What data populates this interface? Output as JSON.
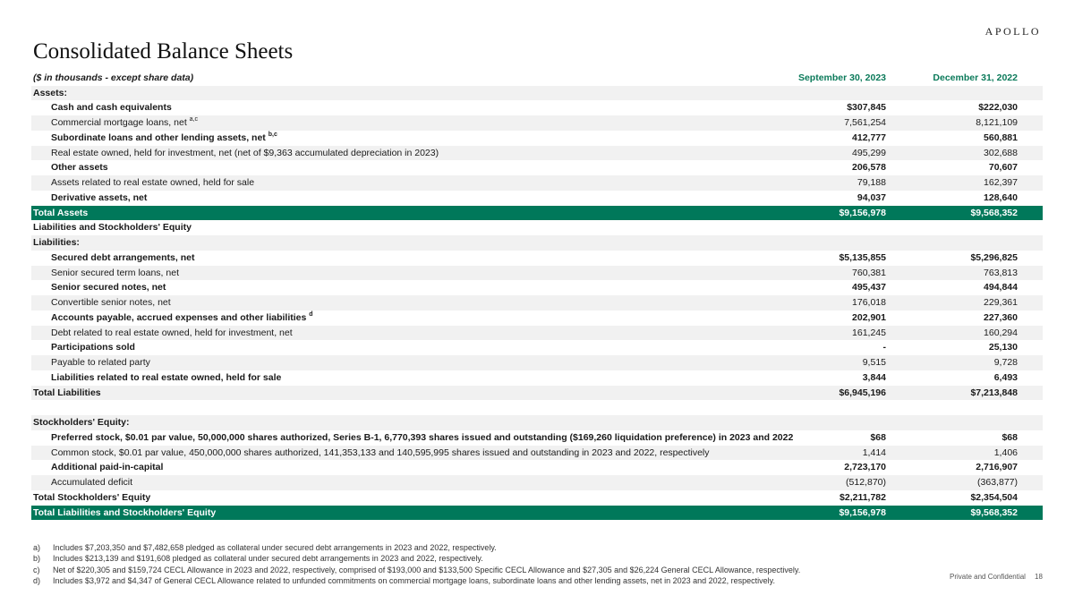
{
  "logo": "APOLLO",
  "title": "Consolidated Balance Sheets",
  "units": "($ in thousands - except share data)",
  "columns": [
    "September 30, 2023",
    "December 31, 2022"
  ],
  "colors": {
    "accent": "#00785a",
    "header_text": "#0b7a5a",
    "shade": "#f1f1f1"
  },
  "rows": [
    {
      "label": "Assets:",
      "sup": "",
      "v1": "",
      "v2": "",
      "kind": "shade",
      "bold": true,
      "indent": false
    },
    {
      "label": "Cash and cash equivalents",
      "sup": "",
      "v1": "$307,845",
      "v2": "$222,030",
      "kind": "plain",
      "bold": true,
      "indent": true
    },
    {
      "label": "Commercial mortgage loans, net",
      "sup": "a,c",
      "v1": "7,561,254",
      "v2": "8,121,109",
      "kind": "shade",
      "bold": false,
      "indent": true
    },
    {
      "label": "Subordinate loans and other lending assets, net",
      "sup": "b,c",
      "v1": "412,777",
      "v2": "560,881",
      "kind": "plain",
      "bold": true,
      "indent": true
    },
    {
      "label": "Real estate owned, held for investment, net (net of $9,363 accumulated depreciation in 2023)",
      "sup": "",
      "v1": "495,299",
      "v2": "302,688",
      "kind": "shade",
      "bold": false,
      "indent": true
    },
    {
      "label": "Other assets",
      "sup": "",
      "v1": "206,578",
      "v2": "70,607",
      "kind": "plain",
      "bold": true,
      "indent": true
    },
    {
      "label": "Assets related to real estate owned, held for sale",
      "sup": "",
      "v1": "79,188",
      "v2": "162,397",
      "kind": "shade",
      "bold": false,
      "indent": true
    },
    {
      "label": "Derivative assets, net",
      "sup": "",
      "v1": "94,037",
      "v2": "128,640",
      "kind": "plain",
      "bold": true,
      "indent": true
    },
    {
      "label": "Total Assets",
      "sup": "",
      "v1": "$9,156,978",
      "v2": "$9,568,352",
      "kind": "total",
      "bold": true,
      "indent": false
    },
    {
      "label": "Liabilities and Stockholders' Equity",
      "sup": "",
      "v1": "",
      "v2": "",
      "kind": "plain",
      "bold": true,
      "indent": false
    },
    {
      "label": "Liabilities:",
      "sup": "",
      "v1": "",
      "v2": "",
      "kind": "shade",
      "bold": true,
      "indent": false
    },
    {
      "label": "Secured debt arrangements, net",
      "sup": "",
      "v1": "$5,135,855",
      "v2": "$5,296,825",
      "kind": "plain",
      "bold": true,
      "indent": true
    },
    {
      "label": "Senior secured term loans, net",
      "sup": "",
      "v1": "760,381",
      "v2": "763,813",
      "kind": "shade",
      "bold": false,
      "indent": true
    },
    {
      "label": "Senior secured notes, net",
      "sup": "",
      "v1": "495,437",
      "v2": "494,844",
      "kind": "plain",
      "bold": true,
      "indent": true
    },
    {
      "label": "Convertible senior notes, net",
      "sup": "",
      "v1": "176,018",
      "v2": "229,361",
      "kind": "shade",
      "bold": false,
      "indent": true
    },
    {
      "label": "Accounts payable, accrued expenses and other liabilities",
      "sup": "d",
      "v1": "202,901",
      "v2": "227,360",
      "kind": "plain",
      "bold": true,
      "indent": true
    },
    {
      "label": "Debt related to real estate owned, held for investment, net",
      "sup": "",
      "v1": "161,245",
      "v2": "160,294",
      "kind": "shade",
      "bold": false,
      "indent": true
    },
    {
      "label": "Participations sold",
      "sup": "",
      "v1": "-",
      "v2": "25,130",
      "kind": "plain",
      "bold": true,
      "indent": true
    },
    {
      "label": "Payable to related party",
      "sup": "",
      "v1": "9,515",
      "v2": "9,728",
      "kind": "shade",
      "bold": false,
      "indent": true
    },
    {
      "label": "Liabilities related to real estate owned, held for sale",
      "sup": "",
      "v1": "3,844",
      "v2": "6,493",
      "kind": "plain",
      "bold": true,
      "indent": true
    },
    {
      "label": "Total Liabilities",
      "sup": "",
      "v1": "$6,945,196",
      "v2": "$7,213,848",
      "kind": "shade",
      "bold": true,
      "indent": false
    },
    {
      "label": "",
      "sup": "",
      "v1": "",
      "v2": "",
      "kind": "plain",
      "bold": false,
      "indent": false
    },
    {
      "label": "Stockholders' Equity:",
      "sup": "",
      "v1": "",
      "v2": "",
      "kind": "shade",
      "bold": true,
      "indent": false
    },
    {
      "label": "Preferred stock, $0.01 par value, 50,000,000 shares authorized, Series B-1, 6,770,393 shares issued and outstanding ($169,260 liquidation preference) in 2023 and 2022",
      "sup": "",
      "v1": "$68",
      "v2": "$68",
      "kind": "plain",
      "bold": true,
      "indent": true
    },
    {
      "label": "Common stock, $0.01 par value, 450,000,000 shares authorized, 141,353,133 and 140,595,995 shares issued and outstanding in 2023 and 2022, respectively",
      "sup": "",
      "v1": "1,414",
      "v2": "1,406",
      "kind": "shade",
      "bold": false,
      "indent": true
    },
    {
      "label": "Additional paid-in-capital",
      "sup": "",
      "v1": "2,723,170",
      "v2": "2,716,907",
      "kind": "plain",
      "bold": true,
      "indent": true
    },
    {
      "label": "Accumulated deficit",
      "sup": "",
      "v1": "(512,870)",
      "v2": "(363,877)",
      "kind": "shade",
      "bold": false,
      "indent": true
    },
    {
      "label": "Total Stockholders' Equity",
      "sup": "",
      "v1": "$2,211,782",
      "v2": "$2,354,504",
      "kind": "plain",
      "bold": true,
      "indent": false
    },
    {
      "label": "Total Liabilities and Stockholders' Equity",
      "sup": "",
      "v1": "$9,156,978",
      "v2": "$9,568,352",
      "kind": "total",
      "bold": true,
      "indent": false
    }
  ],
  "notes": [
    {
      "mark": "a)",
      "text": "Includes $7,203,350 and $7,482,658 pledged as collateral under secured debt arrangements in 2023 and 2022, respectively."
    },
    {
      "mark": "b)",
      "text": "Includes $213,139 and $191,608 pledged as collateral under secured debt arrangements in 2023 and 2022, respectively."
    },
    {
      "mark": "c)",
      "text": "Net of $220,305 and $159,724 CECL Allowance in 2023 and 2022, respectively, comprised of $193,000 and $133,500 Specific CECL Allowance and $27,305 and $26,224 General CECL Allowance, respectively."
    },
    {
      "mark": "d)",
      "text": "Includes $3,972 and $4,347 of General CECL Allowance related to unfunded commitments on commercial mortgage loans, subordinate loans and other lending assets, net in 2023 and 2022, respectively."
    }
  ],
  "footer": {
    "confidential": "Private and Confidential",
    "page": "18"
  }
}
